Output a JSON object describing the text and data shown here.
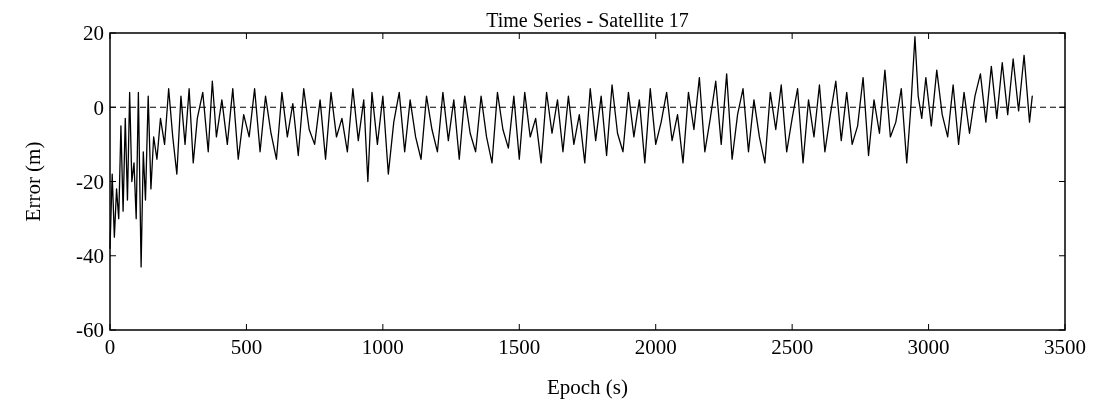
{
  "chart_data": {
    "type": "line",
    "title": "Time Series - Satellite 17",
    "xlabel": "Epoch (s)",
    "ylabel": "Error (m)",
    "xlim": [
      0,
      3500
    ],
    "ylim": [
      -60,
      20
    ],
    "xticks": [
      0,
      500,
      1000,
      1500,
      2000,
      2500,
      3000,
      3500
    ],
    "yticks": [
      -60,
      -40,
      -20,
      0,
      20
    ],
    "grid": false,
    "line_style": "solid",
    "ref_lines": [
      {
        "axis": "y",
        "value": 0,
        "line_style": "dashed",
        "color": "#000000"
      }
    ],
    "series": [
      {
        "color": "#000000",
        "x": [
          0,
          8,
          16,
          24,
          32,
          40,
          48,
          56,
          64,
          72,
          80,
          88,
          96,
          104,
          114,
          122,
          130,
          140,
          150,
          160,
          172,
          185,
          200,
          215,
          230,
          245,
          260,
          275,
          290,
          305,
          320,
          340,
          360,
          375,
          390,
          410,
          430,
          450,
          470,
          490,
          510,
          530,
          550,
          570,
          590,
          610,
          630,
          650,
          670,
          690,
          710,
          730,
          750,
          770,
          790,
          810,
          830,
          850,
          870,
          890,
          910,
          930,
          945,
          960,
          980,
          1000,
          1020,
          1040,
          1060,
          1080,
          1100,
          1120,
          1140,
          1160,
          1180,
          1200,
          1220,
          1240,
          1260,
          1280,
          1300,
          1320,
          1340,
          1360,
          1380,
          1400,
          1420,
          1440,
          1460,
          1480,
          1500,
          1520,
          1540,
          1560,
          1580,
          1600,
          1620,
          1640,
          1660,
          1680,
          1700,
          1720,
          1740,
          1760,
          1780,
          1800,
          1820,
          1840,
          1860,
          1880,
          1900,
          1920,
          1940,
          1960,
          1980,
          2000,
          2020,
          2040,
          2060,
          2080,
          2100,
          2120,
          2140,
          2160,
          2180,
          2200,
          2220,
          2240,
          2260,
          2280,
          2300,
          2320,
          2340,
          2360,
          2380,
          2400,
          2420,
          2440,
          2460,
          2480,
          2500,
          2520,
          2540,
          2560,
          2580,
          2600,
          2620,
          2640,
          2660,
          2680,
          2700,
          2720,
          2740,
          2760,
          2780,
          2800,
          2820,
          2840,
          2860,
          2880,
          2900,
          2920,
          2935,
          2950,
          2962,
          2975,
          2990,
          3010,
          3030,
          3050,
          3070,
          3090,
          3110,
          3130,
          3150,
          3170,
          3190,
          3210,
          3230,
          3250,
          3270,
          3290,
          3310,
          3330,
          3350,
          3370,
          3380
        ],
        "values": [
          -38,
          -18,
          -35,
          -22,
          -30,
          -5,
          -28,
          -3,
          -25,
          4,
          -20,
          -15,
          -30,
          4,
          -43,
          -12,
          -25,
          3,
          -22,
          -8,
          -14,
          -3,
          -10,
          5,
          -8,
          -18,
          3,
          -10,
          5,
          -15,
          -3,
          4,
          -12,
          7,
          -8,
          2,
          -10,
          5,
          -14,
          -2,
          -8,
          5,
          -12,
          3,
          -7,
          -14,
          4,
          -8,
          1,
          -13,
          5,
          -6,
          -10,
          2,
          -14,
          4,
          -8,
          -3,
          -12,
          5,
          -9,
          2,
          -20,
          4,
          -10,
          3,
          -18,
          -4,
          4,
          -12,
          2,
          -8,
          -14,
          3,
          -6,
          -12,
          4,
          -9,
          2,
          -14,
          3,
          -7,
          -12,
          3,
          -8,
          -15,
          4,
          -6,
          -11,
          3,
          -14,
          4,
          -8,
          -3,
          -15,
          4,
          -7,
          2,
          -12,
          3,
          -10,
          -2,
          -15,
          5,
          -9,
          3,
          -13,
          6,
          -7,
          -12,
          4,
          -8,
          2,
          -15,
          5,
          -10,
          -4,
          4,
          -9,
          -2,
          -15,
          4,
          -6,
          8,
          -12,
          -3,
          7,
          -10,
          9,
          -14,
          -2,
          5,
          -12,
          2,
          -8,
          -15,
          4,
          -6,
          6,
          -12,
          -3,
          5,
          -15,
          2,
          -8,
          6,
          -12,
          -2,
          7,
          -9,
          4,
          -10,
          -5,
          8,
          -13,
          2,
          -7,
          10,
          -8,
          -4,
          5,
          -15,
          0,
          19,
          3,
          -3,
          8,
          -5,
          10,
          -2,
          -8,
          6,
          -10,
          4,
          -7,
          3,
          9,
          -4,
          11,
          -3,
          12,
          -2,
          13,
          -1,
          14,
          -4,
          3
        ]
      }
    ]
  }
}
